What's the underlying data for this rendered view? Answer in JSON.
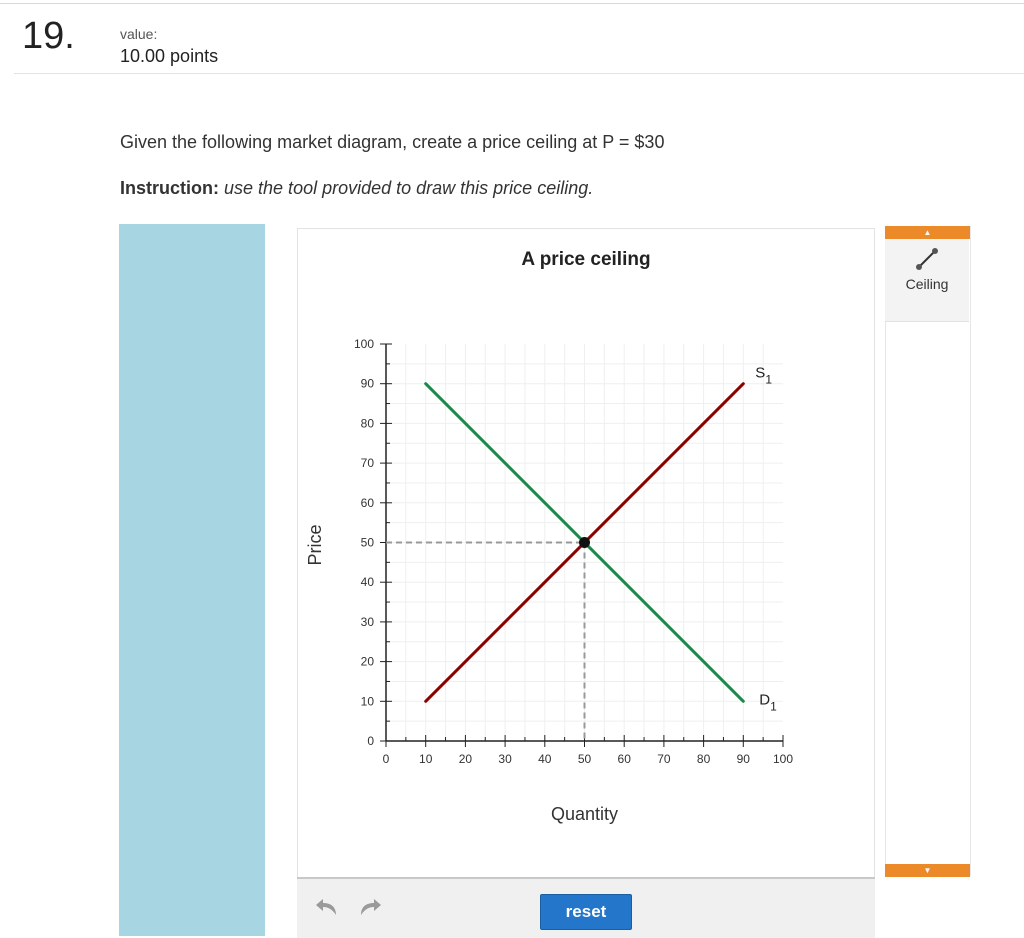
{
  "question": {
    "number": "19.",
    "value_label": "value:",
    "points": "10.00 points",
    "prompt": "Given the following market diagram, create a price ceiling at P = $30",
    "instruction_label": "Instruction:",
    "instruction_text": "use the tool provided to draw this price ceiling."
  },
  "toolbar": {
    "undo_icon": "undo-arrow-icon",
    "redo_icon": "redo-arrow-icon",
    "reset_label": "reset"
  },
  "tools": {
    "ceiling_label": "Ceiling",
    "ceiling_icon": "line-segment-icon",
    "accent_color": "#ec8a2a"
  },
  "chart_data": {
    "type": "line",
    "title": "A price ceiling",
    "xlabel": "Quantity",
    "ylabel": "Price",
    "xlim": [
      0,
      100
    ],
    "ylim": [
      0,
      100
    ],
    "xticks": [
      0,
      10,
      20,
      30,
      40,
      50,
      60,
      70,
      80,
      90,
      100
    ],
    "yticks": [
      0,
      10,
      20,
      30,
      40,
      50,
      60,
      70,
      80,
      90,
      100
    ],
    "grid": true,
    "series": [
      {
        "name": "S1",
        "color": "#8b0000",
        "points": [
          [
            10,
            10
          ],
          [
            90,
            90
          ]
        ]
      },
      {
        "name": "D1",
        "color": "#1a8a4a",
        "points": [
          [
            10,
            90
          ],
          [
            90,
            10
          ]
        ]
      }
    ],
    "series_labels": [
      {
        "main": "S",
        "sub": "1"
      },
      {
        "main": "D",
        "sub": "1"
      }
    ],
    "equilibrium": {
      "x": 50,
      "y": 50
    }
  }
}
